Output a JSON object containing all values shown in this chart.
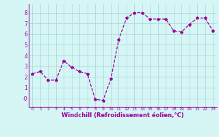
{
  "x": [
    0,
    1,
    2,
    3,
    4,
    5,
    6,
    7,
    8,
    9,
    10,
    11,
    12,
    13,
    14,
    15,
    16,
    17,
    18,
    19,
    20,
    21,
    22,
    23
  ],
  "y": [
    2.3,
    2.5,
    1.7,
    1.7,
    3.5,
    2.9,
    2.5,
    2.3,
    -0.1,
    -0.2,
    1.8,
    5.5,
    7.5,
    8.0,
    8.0,
    7.4,
    7.4,
    7.4,
    6.3,
    6.2,
    6.9,
    7.5,
    7.5,
    6.3
  ],
  "line_color": "#990099",
  "marker": "*",
  "marker_size": 3,
  "bg_color": "#d6f5f5",
  "grid_color": "#aadddd",
  "xlabel": "Windchill (Refroidissement éolien,°C)",
  "ylabel_ticks": [
    0,
    1,
    2,
    3,
    4,
    5,
    6,
    7,
    8
  ],
  "ytick_labels": [
    "-0",
    "1",
    "2",
    "3",
    "4",
    "5",
    "6",
    "7",
    "8"
  ],
  "xlim": [
    -0.5,
    23.5
  ],
  "ylim": [
    -0.8,
    8.8
  ]
}
